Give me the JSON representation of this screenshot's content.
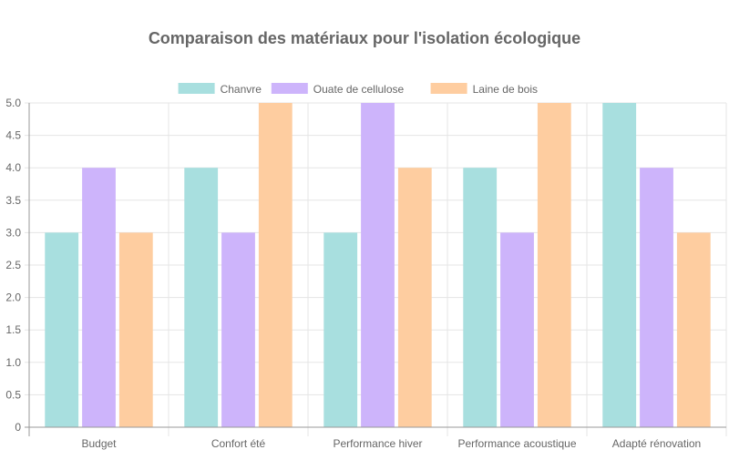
{
  "chart_data": {
    "type": "bar",
    "title": "Comparaison des matériaux pour l'isolation écologique",
    "categories": [
      "Budget",
      "Confort été",
      "Performance hiver",
      "Performance acoustique",
      "Adapté rénovation"
    ],
    "series": [
      {
        "name": "Chanvre",
        "values": [
          3,
          4,
          3,
          4,
          5
        ],
        "color": "#a8dfdf"
      },
      {
        "name": "Ouate de cellulose",
        "values": [
          4,
          3,
          5,
          3,
          4
        ],
        "color": "#cdb4fb"
      },
      {
        "name": "Laine de bois",
        "values": [
          3,
          5,
          4,
          5,
          3
        ],
        "color": "#fecda0"
      }
    ],
    "ylim": [
      0,
      5
    ],
    "yticks": [
      "0",
      "0.5",
      "1.0",
      "1.5",
      "2.0",
      "2.5",
      "3.0",
      "3.5",
      "4.0",
      "4.5",
      "5.0"
    ],
    "grid": true,
    "legend": "top"
  }
}
